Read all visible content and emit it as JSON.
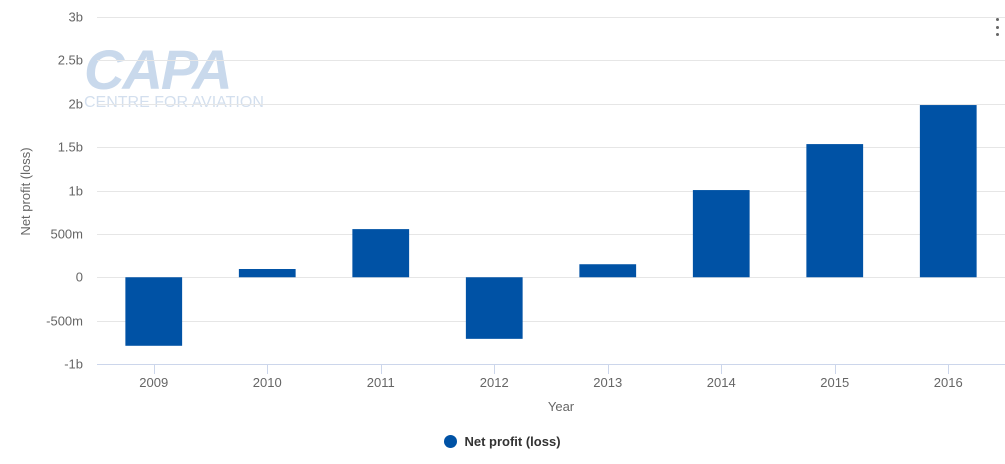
{
  "logo": {
    "main": "CAPA",
    "sub": "CENTRE FOR AVIATION"
  },
  "colors": {
    "bar": "#0052a5",
    "grid": "#e6e6e6",
    "axis": "#ccd6eb"
  },
  "chart_data": {
    "type": "bar",
    "categories": [
      "2009",
      "2010",
      "2011",
      "2012",
      "2013",
      "2014",
      "2015",
      "2016"
    ],
    "series": [
      {
        "name": "Net profit (loss)",
        "values": [
          -790000000,
          95000000,
          555000000,
          -710000000,
          150000000,
          1005000000,
          1535000000,
          1985000000
        ]
      }
    ],
    "ylim": [
      -1000000000,
      3000000000
    ],
    "yticks": [
      -1000000000,
      -500000000,
      0,
      500000000,
      1000000000,
      1500000000,
      2000000000,
      2500000000,
      3000000000
    ],
    "yticklabels": [
      "-1b",
      "-500m",
      "0",
      "500m",
      "1b",
      "1.5b",
      "2b",
      "2.5b",
      "3b"
    ],
    "xlabel": "Year",
    "ylabel": "Net profit (loss)",
    "grid": true,
    "legend": "bottom-center"
  }
}
